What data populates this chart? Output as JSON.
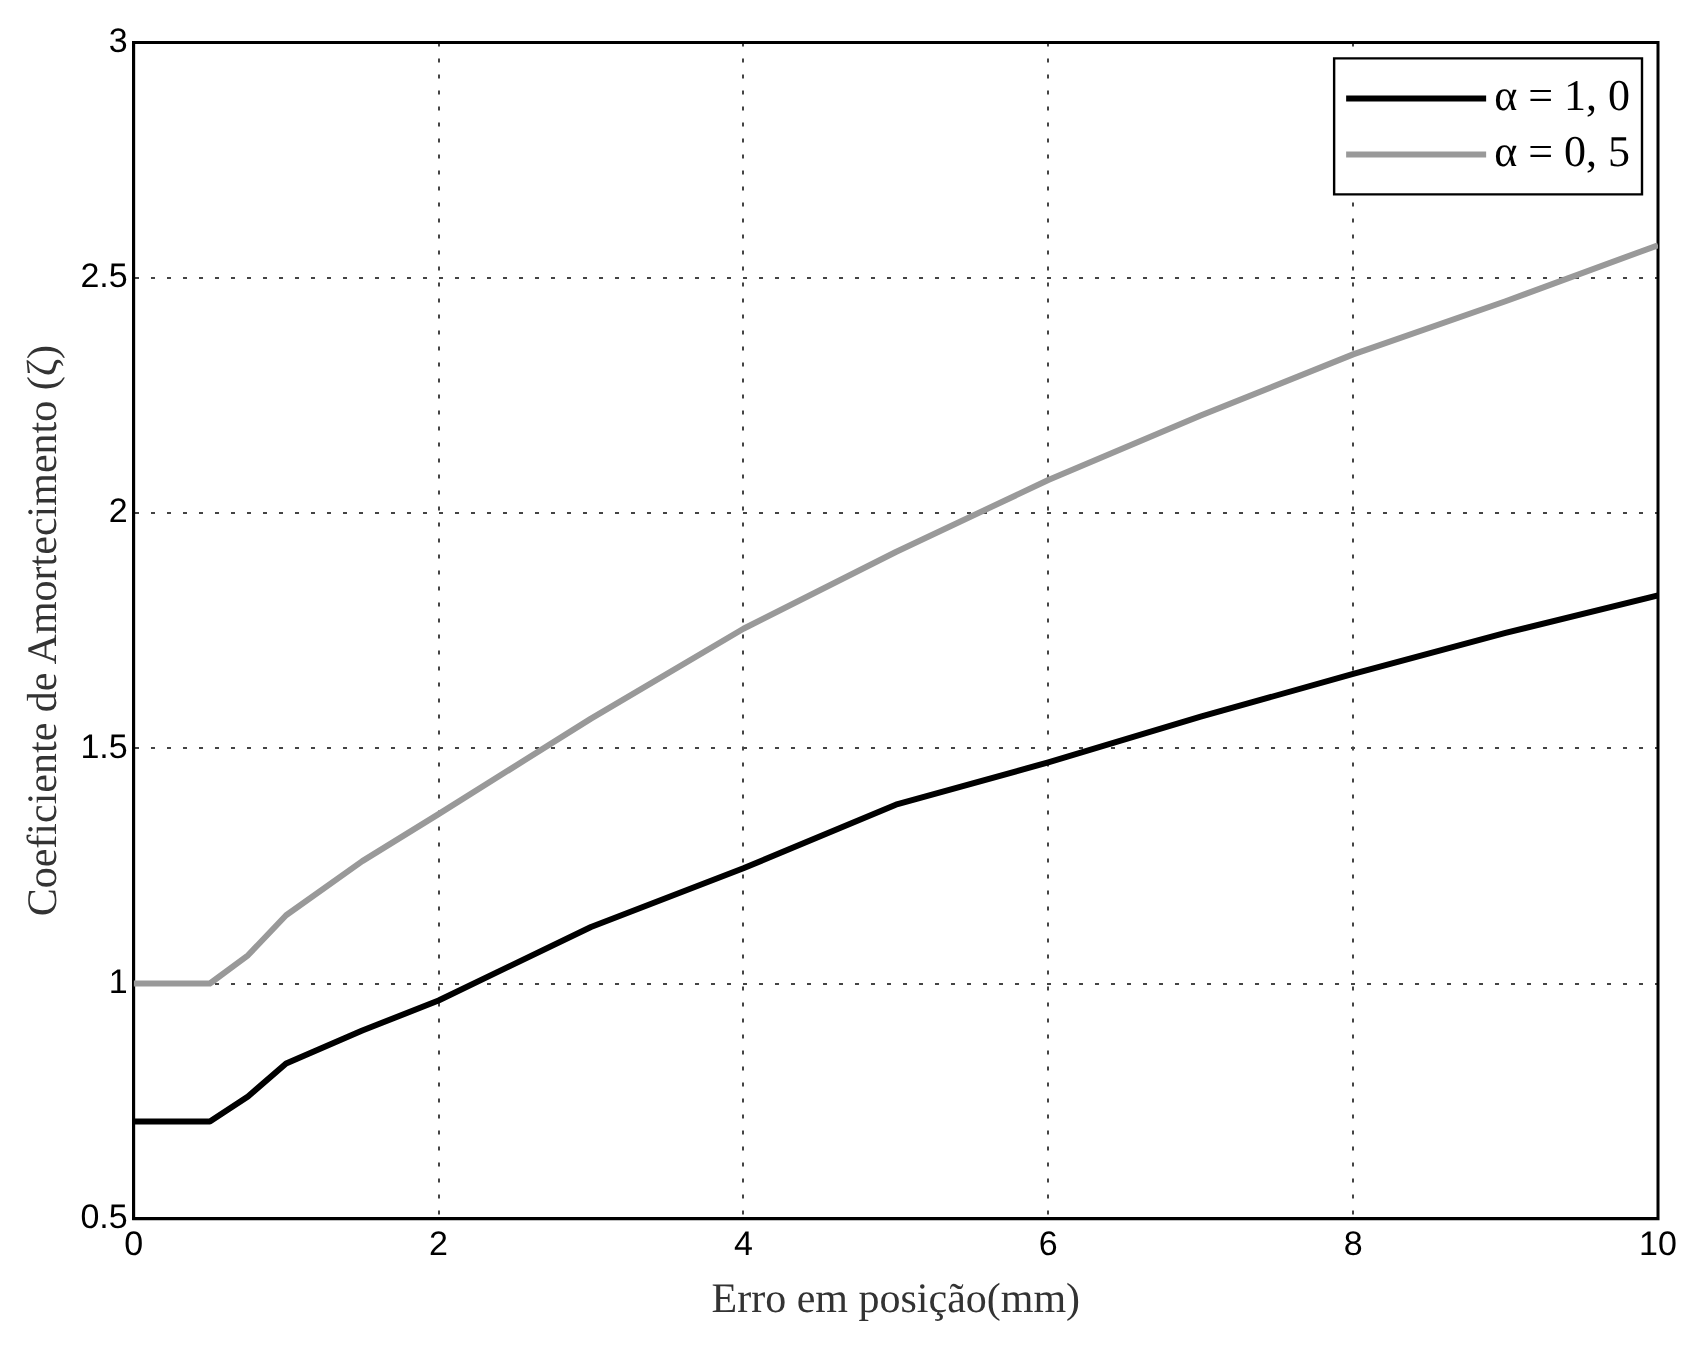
{
  "chart_data": {
    "type": "line",
    "xlabel": "Erro em posição(mm)",
    "ylabel": "Coeficiente de Amortecimento (ζ)",
    "xlim": [
      0,
      10
    ],
    "xticks": [
      0,
      2,
      4,
      6,
      8,
      10
    ],
    "ylim": [
      0.5,
      3
    ],
    "yticks": [
      0.5,
      1,
      1.5,
      2,
      2.5,
      3
    ],
    "grid": true,
    "legend": "top right",
    "marker": "none",
    "line_style": "solid",
    "x": [
      0,
      0.5,
      0.75,
      1,
      1.5,
      2,
      3,
      4,
      5,
      6,
      7,
      8,
      9,
      10
    ],
    "series": [
      {
        "name": "α = 1, 0",
        "color": "#000000",
        "values": [
          0.707,
          0.707,
          0.76,
          0.83,
          0.9,
          0.964,
          1.12,
          1.245,
          1.38,
          1.47,
          1.567,
          1.658,
          1.745,
          1.825
        ]
      },
      {
        "name": "α = 0, 5",
        "color": "#999999",
        "values": [
          1.0,
          1.0,
          1.06,
          1.145,
          1.26,
          1.36,
          1.563,
          1.754,
          1.917,
          2.07,
          2.207,
          2.337,
          2.45,
          2.569
        ]
      }
    ]
  }
}
